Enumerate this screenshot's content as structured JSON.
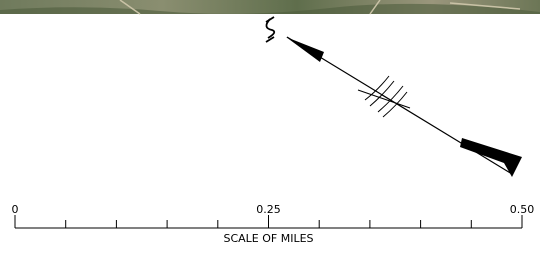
{
  "scale_bar": {
    "labels": [
      "0",
      "0.25",
      "0.50"
    ],
    "title": "SCALE OF MILES"
  }
}
